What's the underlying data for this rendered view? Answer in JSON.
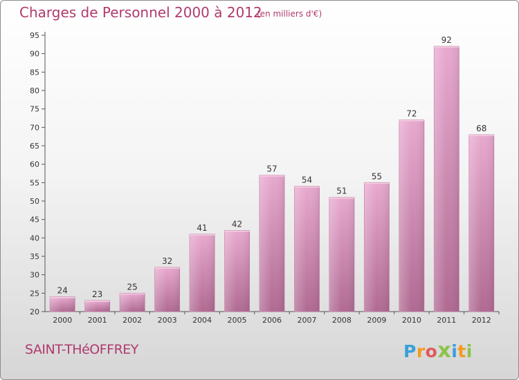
{
  "header": {
    "title": "Charges de Personnel 2000 à 2012",
    "subtitle": "(en milliers d'€)"
  },
  "footer": {
    "commune": "SAINT-THéOFFREY",
    "logo_letters": [
      "P",
      "r",
      "o",
      "x",
      "i",
      "t",
      "i"
    ],
    "logo_colors": [
      "#3aa0d8",
      "#f39a1f",
      "#e05a5a",
      "#8bc34a",
      "#3aa0d8",
      "#f39a1f",
      "#8bc34a"
    ]
  },
  "chart_data": {
    "type": "bar",
    "categories": [
      "2000",
      "2001",
      "2002",
      "2003",
      "2004",
      "2005",
      "2006",
      "2007",
      "2008",
      "2009",
      "2010",
      "2011",
      "2012"
    ],
    "values": [
      24,
      23,
      25,
      32,
      41,
      42,
      57,
      54,
      51,
      55,
      72,
      92,
      68
    ],
    "title": "Charges de Personnel 2000 à 2012",
    "xlabel": "",
    "ylabel": "",
    "ylim": [
      20,
      95
    ],
    "yticks": [
      20,
      25,
      30,
      35,
      40,
      45,
      50,
      55,
      60,
      65,
      70,
      75,
      80,
      85,
      90,
      95
    ],
    "grid": false,
    "legend": "none",
    "bar_color": "#d98fb8"
  }
}
